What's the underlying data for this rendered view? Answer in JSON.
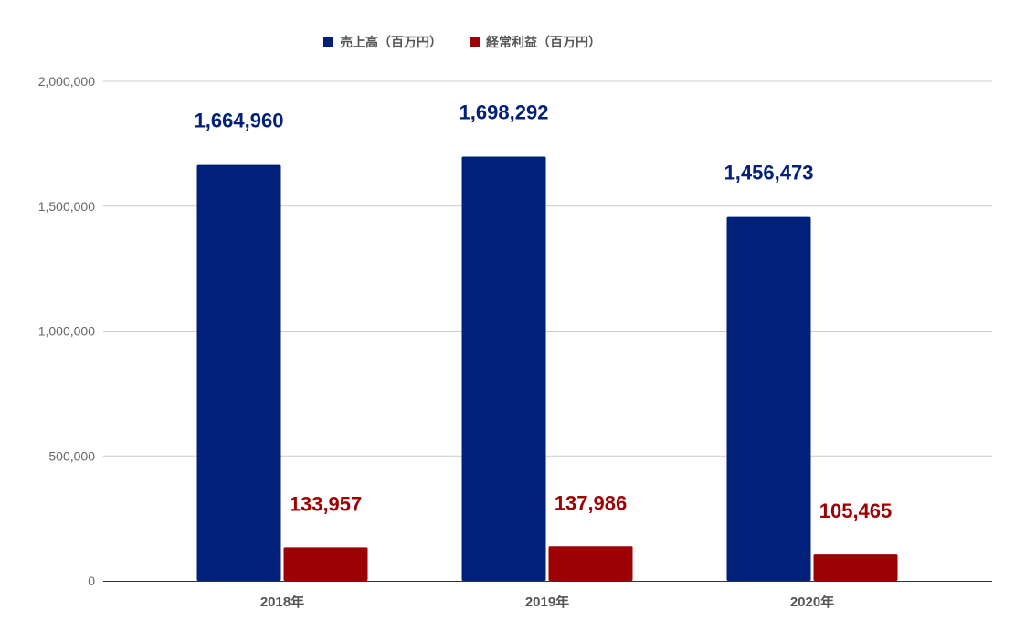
{
  "chart_data": {
    "type": "bar",
    "categories": [
      "2018年",
      "2019年",
      "2020年"
    ],
    "series": [
      {
        "name": "売上高（百万円）",
        "color": "#01207a",
        "values": [
          1664960,
          1698292,
          1456473
        ],
        "labels": [
          "1,664,960",
          "1,698,292",
          "1,456,473"
        ]
      },
      {
        "name": "経常利益（百万円）",
        "color": "#9c0203",
        "values": [
          133957,
          137986,
          105465
        ],
        "labels": [
          "133,957",
          "137,986",
          "105,465"
        ]
      }
    ],
    "ylim": [
      0,
      2000000
    ],
    "yticks": [
      0,
      500000,
      1000000,
      1500000,
      2000000
    ],
    "ytick_labels": [
      "0",
      "500,000",
      "1,000,000",
      "1,500,000",
      "2,000,000"
    ],
    "grid": true,
    "legend_position": "top"
  }
}
